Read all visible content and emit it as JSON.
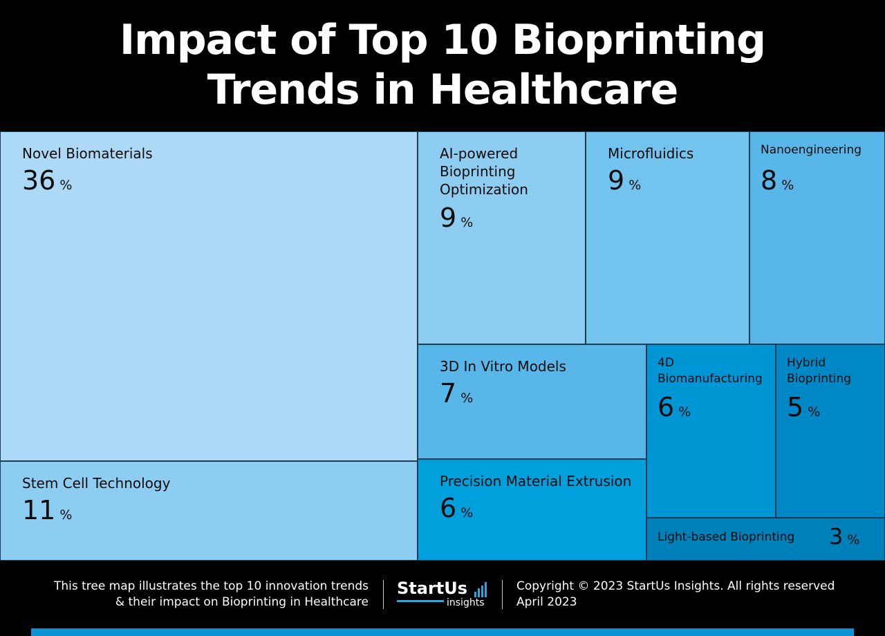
{
  "title_line1": "Impact of Top 10 Bioprinting",
  "title_line2": "Trends in Healthcare",
  "chart_data": {
    "type": "treemap",
    "title": "Impact of Top 10 Bioprinting Trends in Healthcare",
    "unit": "%",
    "items": [
      {
        "name": "Novel Biomaterials",
        "value": 36,
        "color": "#acd9f6"
      },
      {
        "name": "Stem Cell Technology",
        "value": 11,
        "color": "#8dcdf1"
      },
      {
        "name": "AI-powered Bioprinting Optimization",
        "value": 9,
        "color": "#8dcdf1"
      },
      {
        "name": "Microfluidics",
        "value": 9,
        "color": "#72c3ee"
      },
      {
        "name": "Nanoengineering",
        "value": 8,
        "color": "#58b7e8"
      },
      {
        "name": "3D In Vitro Models",
        "value": 7,
        "color": "#58b7e8"
      },
      {
        "name": "Precision Material Extrusion",
        "value": 6,
        "color": "#00a0dd"
      },
      {
        "name": "4D Biomanufacturing",
        "value": 6,
        "color": "#0096d6"
      },
      {
        "name": "Hybrid Bioprinting",
        "value": 5,
        "color": "#0088c6"
      },
      {
        "name": "Light-based Bioprinting",
        "value": 3,
        "color": "#0080b8"
      }
    ]
  },
  "footer": {
    "description_line1": "This tree map illustrates the top 10 innovation trends",
    "description_line2": "& their impact on Bioprinting in Healthcare",
    "logo_word": "StartUs",
    "logo_sub": "insights",
    "copyright_line1": "Copyright © 2023 StartUs Insights. All rights reserved",
    "copyright_line2": "April 2023",
    "accent_color": "#2aa5e0"
  }
}
